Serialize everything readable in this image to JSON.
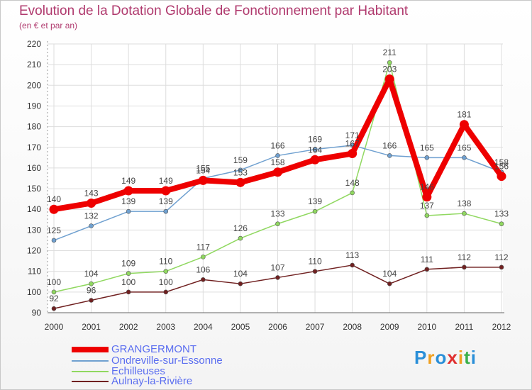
{
  "title": "Evolution de la Dotation Globale de Fonctionnement par Habitant",
  "subtitle": "(en € et par an)",
  "logo": {
    "letters": [
      "P",
      "r",
      "o",
      "x",
      "i",
      "t",
      "i"
    ],
    "colors": [
      "#2a8fd8",
      "#f0a020",
      "#2a8fd8",
      "#e03030",
      "#f0a020",
      "#3bb04a",
      "#2a8fd8"
    ]
  },
  "chart_data": {
    "type": "line",
    "title": "Evolution de la Dotation Globale de Fonctionnement par Habitant",
    "xlabel": "",
    "ylabel": "(en € et par an)",
    "x": [
      "2000",
      "2001",
      "2002",
      "2003",
      "2004",
      "2005",
      "2006",
      "2007",
      "2008",
      "2009",
      "2010",
      "2011",
      "2012"
    ],
    "yticks": [
      "90",
      "100",
      "110",
      "120",
      "130",
      "140",
      "150",
      "160",
      "170",
      "180",
      "190",
      "200",
      "210",
      "220"
    ],
    "ylim": [
      90,
      220
    ],
    "grid": true,
    "legend_position": "bottom-left",
    "series": [
      {
        "name": "GRANGERMONT",
        "color": "#ee0000",
        "values": [
          140,
          143,
          149,
          149,
          154,
          153,
          158,
          164,
          167,
          203,
          146,
          181,
          156
        ],
        "labels": [
          "140",
          "143",
          "149",
          "149",
          "154",
          "153",
          "158",
          "164",
          "167",
          "203",
          "146",
          "181",
          "156"
        ]
      },
      {
        "name": "Ondreville-sur-Essonne",
        "color": "#6fa0d0",
        "values": [
          125,
          132,
          139,
          139,
          155,
          159,
          166,
          169,
          171,
          166,
          165,
          165,
          158
        ],
        "labels": [
          "125",
          "132",
          "139",
          "139",
          "155",
          "159",
          "166",
          "169",
          "171",
          "166",
          "165",
          "165",
          "158"
        ]
      },
      {
        "name": "Echilleuses",
        "color": "#90d860",
        "values": [
          100,
          104,
          109,
          110,
          117,
          126,
          133,
          139,
          148,
          211,
          137,
          138,
          133
        ],
        "labels": [
          "100",
          "104",
          "109",
          "110",
          "117",
          "126",
          "133",
          "139",
          "148",
          "211",
          "137",
          "138",
          "133"
        ]
      },
      {
        "name": "Aulnay-la-Rivière",
        "color": "#702020",
        "values": [
          92,
          96,
          100,
          100,
          106,
          104,
          107,
          110,
          113,
          104,
          111,
          112,
          112
        ],
        "labels": [
          "92",
          "96",
          "100",
          "100",
          "106",
          "104",
          "107",
          "110",
          "113",
          "104",
          "111",
          "112",
          "112"
        ]
      }
    ]
  }
}
